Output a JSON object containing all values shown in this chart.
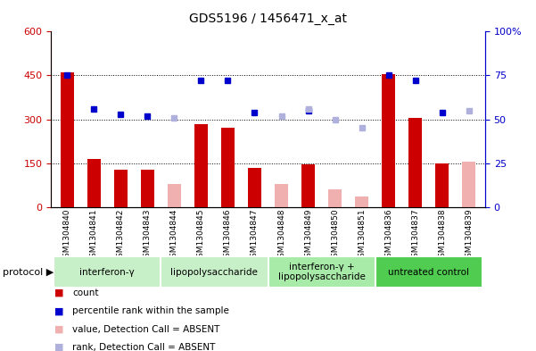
{
  "title": "GDS5196 / 1456471_x_at",
  "samples": [
    "GSM1304840",
    "GSM1304841",
    "GSM1304842",
    "GSM1304843",
    "GSM1304844",
    "GSM1304845",
    "GSM1304846",
    "GSM1304847",
    "GSM1304848",
    "GSM1304849",
    "GSM1304850",
    "GSM1304851",
    "GSM1304836",
    "GSM1304837",
    "GSM1304838",
    "GSM1304839"
  ],
  "count_values": [
    460,
    163,
    128,
    128,
    0,
    283,
    272,
    135,
    0,
    145,
    0,
    0,
    455,
    305,
    148,
    0
  ],
  "count_absent": [
    0,
    0,
    0,
    0,
    80,
    0,
    0,
    0,
    78,
    0,
    60,
    35,
    0,
    0,
    0,
    155
  ],
  "rank_values": [
    75,
    56,
    53,
    52,
    0,
    72,
    72,
    54,
    0,
    55,
    0,
    0,
    75,
    72,
    54,
    0
  ],
  "rank_absent": [
    0,
    0,
    0,
    0,
    51,
    0,
    0,
    0,
    52,
    56,
    50,
    45,
    0,
    0,
    0,
    55
  ],
  "protocols": [
    {
      "label": "interferon-γ",
      "start": 0,
      "end": 4,
      "color": "#c8f0c8"
    },
    {
      "label": "lipopolysaccharide",
      "start": 4,
      "end": 8,
      "color": "#c8f0c8"
    },
    {
      "label": "interferon-γ +\nlipopolysaccharide",
      "start": 8,
      "end": 12,
      "color": "#a8eba8"
    },
    {
      "label": "untreated control",
      "start": 12,
      "end": 16,
      "color": "#50cc50"
    }
  ],
  "ylim_left": [
    0,
    600
  ],
  "ylim_right": [
    0,
    100
  ],
  "yticks_left": [
    0,
    150,
    300,
    450,
    600
  ],
  "yticks_right": [
    0,
    25,
    50,
    75,
    100
  ],
  "bar_color_count": "#cc0000",
  "bar_color_absent": "#f0b0b0",
  "dot_color_rank": "#0000cc",
  "dot_color_rank_absent": "#b0b0dd",
  "grid_color": "black",
  "bg_color": "#ffffff",
  "left_axis_color": "#cc0000",
  "right_axis_color": "#0000cc"
}
